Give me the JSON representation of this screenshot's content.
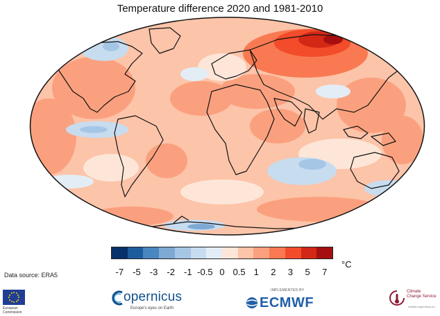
{
  "title": "Temperature difference 2020 and 1981-2010",
  "colorbar": {
    "colors": [
      "#08306b",
      "#1d5c9c",
      "#4a86c0",
      "#7ea9d4",
      "#a6c6e6",
      "#c8dcef",
      "#e3edf6",
      "#fde6d8",
      "#fcc4a9",
      "#fba07e",
      "#f97a52",
      "#f24c2b",
      "#d32815",
      "#a50f0f"
    ],
    "ticks": [
      "-7",
      "-5",
      "-3",
      "-2",
      "-1",
      "-0.5",
      "0",
      "0.5",
      "1",
      "2",
      "3",
      "5",
      "7"
    ],
    "unit": "°C"
  },
  "source": "Data source: ERA5",
  "logos": {
    "eu_flag_icon": "eu-flag-icon",
    "eu_text": [
      "European",
      "Commission"
    ],
    "copernicus": "opernicus",
    "copernicus_tagline": "Europe's eyes on Earth",
    "ecmwf_implemented": "IMPLEMENTED BY",
    "ecmwf": "ECMWF",
    "c3s_name": [
      "Climate",
      "Change Service"
    ],
    "c3s_url": "climate.copernicus.eu"
  }
}
